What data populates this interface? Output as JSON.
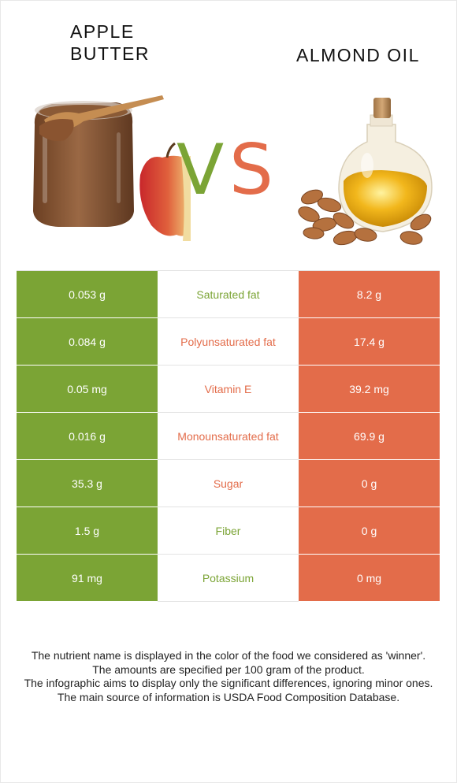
{
  "header": {
    "left_title_line1": "APPLE",
    "left_title_line2": "BUTTER",
    "right_title": "ALMOND OIL",
    "vs_v": "V",
    "vs_s": "S"
  },
  "colors": {
    "winner_left": "#7ba435",
    "winner_right": "#e36c4a"
  },
  "rows": [
    {
      "left": "0.053 g",
      "name": "Saturated fat",
      "right": "8.2 g",
      "winner": "left"
    },
    {
      "left": "0.084 g",
      "name": "Polyunsaturated fat",
      "right": "17.4 g",
      "winner": "right"
    },
    {
      "left": "0.05 mg",
      "name": "Vitamin E",
      "right": "39.2 mg",
      "winner": "right"
    },
    {
      "left": "0.016 g",
      "name": "Monounsaturated fat",
      "right": "69.9 g",
      "winner": "right"
    },
    {
      "left": "35.3 g",
      "name": "Sugar",
      "right": "0 g",
      "winner": "right"
    },
    {
      "left": "1.5 g",
      "name": "Fiber",
      "right": "0 g",
      "winner": "left"
    },
    {
      "left": "91 mg",
      "name": "Potassium",
      "right": "0 mg",
      "winner": "left"
    }
  ],
  "footer": {
    "line1": "The nutrient name is displayed in the color of the food we considered as 'winner'.",
    "line2": "The amounts are specified per 100 gram of the product.",
    "line3": "The infographic aims to display only the significant differences, ignoring minor ones.",
    "line4": "The main source of information is USDA Food Composition Database."
  }
}
